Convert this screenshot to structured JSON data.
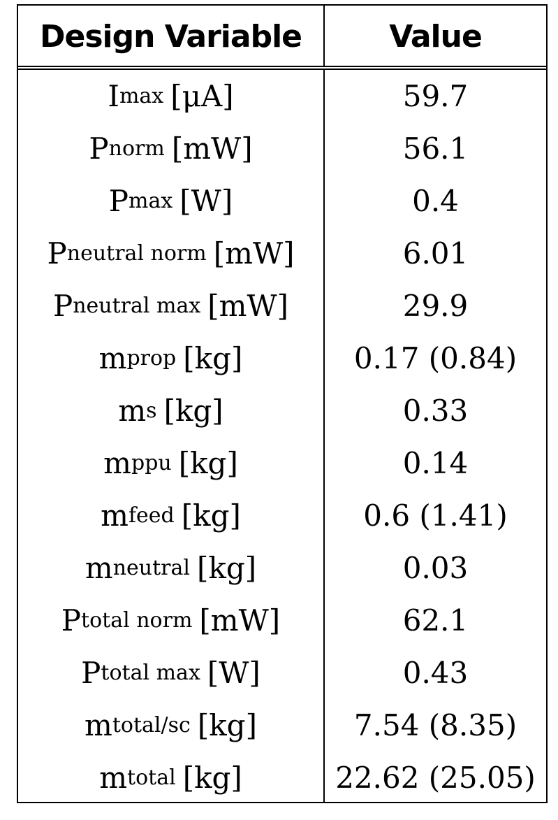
{
  "header": {
    "variable": "Design Variable",
    "value": "Value"
  },
  "rows": [
    {
      "base": "I",
      "sub": "max",
      "unit": "[μA]",
      "value": "59.7"
    },
    {
      "base": "P",
      "sub": "norm",
      "unit": "[mW]",
      "value": "56.1"
    },
    {
      "base": "P",
      "sub": "max",
      "unit": "[W]",
      "value": "0.4"
    },
    {
      "base": "P",
      "sub": "neutral norm",
      "unit": "[mW]",
      "value": "6.01"
    },
    {
      "base": "P",
      "sub": "neutral max",
      "unit": "[mW]",
      "value": "29.9"
    },
    {
      "base": "m",
      "sub": "prop",
      "unit": "[kg]",
      "value": "0.17 (0.84)"
    },
    {
      "base": "m",
      "sub": "s",
      "unit": "[kg]",
      "value": "0.33"
    },
    {
      "base": "m",
      "sub": "ppu",
      "unit": "[kg]",
      "value": "0.14"
    },
    {
      "base": "m",
      "sub": "feed",
      "unit": "[kg]",
      "value": "0.6 (1.41)"
    },
    {
      "base": "m",
      "sub": "neutral",
      "unit": "[kg]",
      "value": "0.03"
    },
    {
      "base": "P",
      "sub": "total norm",
      "unit": "[mW]",
      "value": "62.1"
    },
    {
      "base": "P",
      "sub": "total max",
      "unit": "[W]",
      "value": "0.43"
    },
    {
      "base": "m",
      "sub": "total/sc",
      "unit": "[kg]",
      "value": "7.54 (8.35)"
    },
    {
      "base": "m",
      "sub": "total",
      "unit": "[kg]",
      "value": "22.62 (25.05)"
    }
  ]
}
